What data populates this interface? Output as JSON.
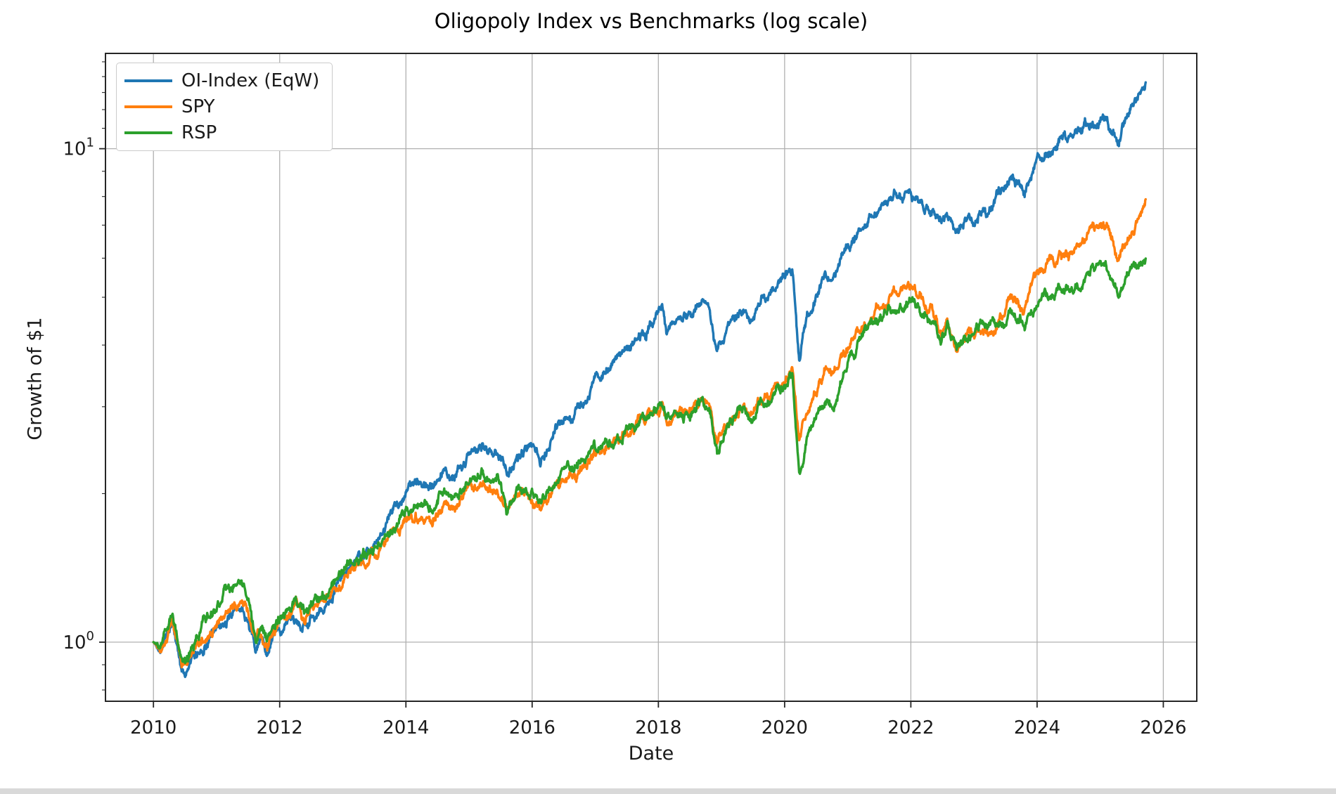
{
  "page": {
    "background": "#ffffff",
    "bottom_strip_color": "#d9d9d9"
  },
  "chart_data": {
    "type": "line",
    "title": "Oligopoly Index vs Benchmarks (log scale)",
    "xlabel": "Date",
    "ylabel": "Growth of $1",
    "log_y": true,
    "grid": true,
    "legend_position": "upper left",
    "x_range": [
      2009.24,
      2026.53
    ],
    "y_range": [
      0.759,
      15.6
    ],
    "x_tick_years": [
      2010,
      2012,
      2014,
      2016,
      2018,
      2020,
      2022,
      2024,
      2026
    ],
    "y_ticks": [
      {
        "value": 1,
        "base": "10",
        "exponent": "0"
      },
      {
        "value": 10,
        "base": "10",
        "exponent": "1"
      }
    ],
    "y_minor_tick_values": [
      0.8,
      0.9,
      2,
      3,
      4,
      5,
      6,
      7,
      8,
      9,
      11,
      12,
      13,
      14,
      15
    ],
    "axis_color": "#262626",
    "grid_color": "#b0b0b0",
    "series": [
      {
        "name": "OI-Index (EqW)",
        "color": "#1f77b4",
        "points": [
          [
            2010.0,
            1.0
          ],
          [
            2010.08,
            0.97
          ],
          [
            2010.3,
            1.09
          ],
          [
            2010.45,
            0.885
          ],
          [
            2010.52,
            0.87
          ],
          [
            2010.65,
            0.93
          ],
          [
            2010.8,
            0.99
          ],
          [
            2010.97,
            1.05
          ],
          [
            2011.1,
            1.1
          ],
          [
            2011.35,
            1.17
          ],
          [
            2011.5,
            1.12
          ],
          [
            2011.62,
            0.95
          ],
          [
            2011.7,
            1.0
          ],
          [
            2011.8,
            0.94
          ],
          [
            2011.95,
            1.03
          ],
          [
            2012.1,
            1.08
          ],
          [
            2012.25,
            1.13
          ],
          [
            2012.4,
            1.09
          ],
          [
            2012.6,
            1.15
          ],
          [
            2012.8,
            1.2
          ],
          [
            2013.0,
            1.36
          ],
          [
            2013.3,
            1.48
          ],
          [
            2013.5,
            1.58
          ],
          [
            2013.75,
            1.8
          ],
          [
            2014.0,
            2.05
          ],
          [
            2014.2,
            2.1
          ],
          [
            2014.4,
            2.06
          ],
          [
            2014.6,
            2.24
          ],
          [
            2014.78,
            2.18
          ],
          [
            2015.0,
            2.39
          ],
          [
            2015.2,
            2.45
          ],
          [
            2015.45,
            2.48
          ],
          [
            2015.6,
            2.21
          ],
          [
            2015.75,
            2.36
          ],
          [
            2015.9,
            2.5
          ],
          [
            2016.05,
            2.4
          ],
          [
            2016.13,
            2.35
          ],
          [
            2016.3,
            2.58
          ],
          [
            2016.5,
            2.8
          ],
          [
            2016.75,
            2.95
          ],
          [
            2017.0,
            3.46
          ],
          [
            2017.25,
            3.65
          ],
          [
            2017.5,
            3.93
          ],
          [
            2017.75,
            4.22
          ],
          [
            2018.0,
            4.6
          ],
          [
            2018.06,
            4.78
          ],
          [
            2018.13,
            4.28
          ],
          [
            2018.3,
            4.45
          ],
          [
            2018.5,
            4.52
          ],
          [
            2018.7,
            4.9
          ],
          [
            2018.82,
            4.65
          ],
          [
            2018.93,
            3.85
          ],
          [
            2019.1,
            4.45
          ],
          [
            2019.33,
            4.73
          ],
          [
            2019.45,
            4.43
          ],
          [
            2019.6,
            4.95
          ],
          [
            2019.78,
            5.05
          ],
          [
            2019.95,
            5.45
          ],
          [
            2020.12,
            5.8
          ],
          [
            2020.23,
            3.73
          ],
          [
            2020.35,
            4.55
          ],
          [
            2020.5,
            5.1
          ],
          [
            2020.65,
            5.5
          ],
          [
            2020.78,
            5.45
          ],
          [
            2020.9,
            5.95
          ],
          [
            2021.0,
            6.4
          ],
          [
            2021.2,
            6.8
          ],
          [
            2021.4,
            7.4
          ],
          [
            2021.6,
            7.8
          ],
          [
            2021.8,
            8.05
          ],
          [
            2021.95,
            8.15
          ],
          [
            2022.05,
            7.9
          ],
          [
            2022.2,
            7.55
          ],
          [
            2022.35,
            7.35
          ],
          [
            2022.48,
            7.0
          ],
          [
            2022.58,
            7.35
          ],
          [
            2022.73,
            6.7
          ],
          [
            2022.9,
            7.15
          ],
          [
            2023.0,
            7.05
          ],
          [
            2023.12,
            7.5
          ],
          [
            2023.22,
            7.3
          ],
          [
            2023.4,
            8.0
          ],
          [
            2023.58,
            8.8
          ],
          [
            2023.8,
            8.3
          ],
          [
            2024.0,
            9.5
          ],
          [
            2024.2,
            9.9
          ],
          [
            2024.4,
            10.4
          ],
          [
            2024.55,
            10.25
          ],
          [
            2024.75,
            11.0
          ],
          [
            2024.95,
            11.4
          ],
          [
            2025.08,
            11.6
          ],
          [
            2025.18,
            10.9
          ],
          [
            2025.3,
            10.3
          ],
          [
            2025.45,
            11.5
          ],
          [
            2025.55,
            12.3
          ],
          [
            2025.72,
            13.6
          ]
        ]
      },
      {
        "name": "SPY",
        "color": "#ff7f0e",
        "points": [
          [
            2010.0,
            1.0
          ],
          [
            2010.08,
            0.975
          ],
          [
            2010.3,
            1.1
          ],
          [
            2010.45,
            0.9
          ],
          [
            2010.52,
            0.89
          ],
          [
            2010.65,
            0.95
          ],
          [
            2010.8,
            1.02
          ],
          [
            2010.97,
            1.09
          ],
          [
            2011.1,
            1.13
          ],
          [
            2011.35,
            1.2
          ],
          [
            2011.5,
            1.15
          ],
          [
            2011.62,
            0.99
          ],
          [
            2011.7,
            1.04
          ],
          [
            2011.8,
            0.98
          ],
          [
            2011.95,
            1.07
          ],
          [
            2012.1,
            1.11
          ],
          [
            2012.25,
            1.17
          ],
          [
            2012.4,
            1.13
          ],
          [
            2012.6,
            1.19
          ],
          [
            2012.8,
            1.23
          ],
          [
            2013.0,
            1.38
          ],
          [
            2013.3,
            1.46
          ],
          [
            2013.5,
            1.5
          ],
          [
            2013.75,
            1.63
          ],
          [
            2014.0,
            1.78
          ],
          [
            2014.2,
            1.83
          ],
          [
            2014.4,
            1.8
          ],
          [
            2014.6,
            1.92
          ],
          [
            2014.78,
            1.89
          ],
          [
            2015.0,
            2.03
          ],
          [
            2015.2,
            2.06
          ],
          [
            2015.45,
            2.07
          ],
          [
            2015.6,
            1.85
          ],
          [
            2015.75,
            1.98
          ],
          [
            2015.9,
            1.99
          ],
          [
            2016.05,
            1.92
          ],
          [
            2016.13,
            1.88
          ],
          [
            2016.3,
            2.02
          ],
          [
            2016.5,
            2.12
          ],
          [
            2016.75,
            2.2
          ],
          [
            2017.0,
            2.38
          ],
          [
            2017.25,
            2.5
          ],
          [
            2017.5,
            2.71
          ],
          [
            2017.75,
            2.85
          ],
          [
            2018.0,
            3.0
          ],
          [
            2018.06,
            3.08
          ],
          [
            2018.13,
            2.82
          ],
          [
            2018.3,
            2.9
          ],
          [
            2018.5,
            2.97
          ],
          [
            2018.7,
            3.1
          ],
          [
            2018.82,
            3.0
          ],
          [
            2018.93,
            2.52
          ],
          [
            2019.1,
            2.8
          ],
          [
            2019.33,
            3.0
          ],
          [
            2019.45,
            2.86
          ],
          [
            2019.6,
            3.1
          ],
          [
            2019.78,
            3.17
          ],
          [
            2019.95,
            3.4
          ],
          [
            2020.12,
            3.62
          ],
          [
            2020.23,
            2.52
          ],
          [
            2020.35,
            2.95
          ],
          [
            2020.5,
            3.2
          ],
          [
            2020.65,
            3.55
          ],
          [
            2020.78,
            3.5
          ],
          [
            2020.9,
            3.75
          ],
          [
            2021.0,
            4.0
          ],
          [
            2021.2,
            4.25
          ],
          [
            2021.4,
            4.55
          ],
          [
            2021.6,
            4.9
          ],
          [
            2021.8,
            5.05
          ],
          [
            2021.95,
            5.3
          ],
          [
            2022.05,
            5.2
          ],
          [
            2022.2,
            4.9
          ],
          [
            2022.35,
            4.75
          ],
          [
            2022.48,
            4.2
          ],
          [
            2022.58,
            4.5
          ],
          [
            2022.73,
            3.93
          ],
          [
            2022.9,
            4.25
          ],
          [
            2023.0,
            4.15
          ],
          [
            2023.12,
            4.35
          ],
          [
            2023.22,
            4.25
          ],
          [
            2023.4,
            4.55
          ],
          [
            2023.58,
            5.0
          ],
          [
            2023.8,
            4.7
          ],
          [
            2024.0,
            5.6
          ],
          [
            2024.2,
            5.9
          ],
          [
            2024.4,
            6.1
          ],
          [
            2024.55,
            6.0
          ],
          [
            2024.75,
            6.5
          ],
          [
            2024.95,
            6.9
          ],
          [
            2025.08,
            7.05
          ],
          [
            2025.18,
            6.6
          ],
          [
            2025.3,
            5.95
          ],
          [
            2025.45,
            6.6
          ],
          [
            2025.55,
            7.0
          ],
          [
            2025.72,
            7.8
          ]
        ]
      },
      {
        "name": "RSP",
        "color": "#2ca02c",
        "points": [
          [
            2010.0,
            1.0
          ],
          [
            2010.08,
            0.98
          ],
          [
            2010.3,
            1.13
          ],
          [
            2010.45,
            0.93
          ],
          [
            2010.52,
            0.92
          ],
          [
            2010.65,
            0.99
          ],
          [
            2010.8,
            1.09
          ],
          [
            2010.97,
            1.19
          ],
          [
            2011.1,
            1.24
          ],
          [
            2011.35,
            1.32
          ],
          [
            2011.5,
            1.26
          ],
          [
            2011.62,
            1.03
          ],
          [
            2011.7,
            1.08
          ],
          [
            2011.8,
            1.01
          ],
          [
            2011.95,
            1.09
          ],
          [
            2012.1,
            1.13
          ],
          [
            2012.25,
            1.2
          ],
          [
            2012.4,
            1.16
          ],
          [
            2012.6,
            1.22
          ],
          [
            2012.8,
            1.26
          ],
          [
            2013.0,
            1.4
          ],
          [
            2013.3,
            1.49
          ],
          [
            2013.5,
            1.55
          ],
          [
            2013.75,
            1.7
          ],
          [
            2014.0,
            1.87
          ],
          [
            2014.2,
            1.93
          ],
          [
            2014.4,
            1.9
          ],
          [
            2014.6,
            2.0
          ],
          [
            2014.78,
            1.97
          ],
          [
            2015.0,
            2.12
          ],
          [
            2015.2,
            2.16
          ],
          [
            2015.45,
            2.18
          ],
          [
            2015.6,
            1.89
          ],
          [
            2015.75,
            2.04
          ],
          [
            2015.9,
            2.04
          ],
          [
            2016.05,
            1.96
          ],
          [
            2016.13,
            1.91
          ],
          [
            2016.3,
            2.08
          ],
          [
            2016.5,
            2.19
          ],
          [
            2016.75,
            2.28
          ],
          [
            2017.0,
            2.43
          ],
          [
            2017.25,
            2.52
          ],
          [
            2017.5,
            2.69
          ],
          [
            2017.75,
            2.82
          ],
          [
            2018.0,
            2.96
          ],
          [
            2018.06,
            3.03
          ],
          [
            2018.13,
            2.8
          ],
          [
            2018.3,
            2.88
          ],
          [
            2018.5,
            2.93
          ],
          [
            2018.7,
            3.05
          ],
          [
            2018.82,
            2.95
          ],
          [
            2018.93,
            2.46
          ],
          [
            2019.1,
            2.78
          ],
          [
            2019.33,
            2.97
          ],
          [
            2019.45,
            2.83
          ],
          [
            2019.6,
            3.05
          ],
          [
            2019.78,
            3.1
          ],
          [
            2019.95,
            3.3
          ],
          [
            2020.12,
            3.47
          ],
          [
            2020.23,
            2.1
          ],
          [
            2020.35,
            2.6
          ],
          [
            2020.5,
            2.85
          ],
          [
            2020.65,
            3.1
          ],
          [
            2020.78,
            3.05
          ],
          [
            2020.9,
            3.4
          ],
          [
            2021.0,
            3.75
          ],
          [
            2021.2,
            4.15
          ],
          [
            2021.4,
            4.5
          ],
          [
            2021.6,
            4.6
          ],
          [
            2021.8,
            4.75
          ],
          [
            2021.95,
            4.95
          ],
          [
            2022.05,
            4.88
          ],
          [
            2022.2,
            4.65
          ],
          [
            2022.35,
            4.55
          ],
          [
            2022.48,
            4.1
          ],
          [
            2022.58,
            4.4
          ],
          [
            2022.73,
            3.9
          ],
          [
            2022.9,
            4.2
          ],
          [
            2023.0,
            4.2
          ],
          [
            2023.12,
            4.4
          ],
          [
            2023.22,
            4.3
          ],
          [
            2023.4,
            4.4
          ],
          [
            2023.58,
            4.65
          ],
          [
            2023.8,
            4.4
          ],
          [
            2024.0,
            5.0
          ],
          [
            2024.2,
            5.1
          ],
          [
            2024.4,
            5.2
          ],
          [
            2024.55,
            5.12
          ],
          [
            2024.75,
            5.5
          ],
          [
            2024.95,
            5.68
          ],
          [
            2025.08,
            5.72
          ],
          [
            2025.18,
            5.4
          ],
          [
            2025.3,
            4.93
          ],
          [
            2025.45,
            5.5
          ],
          [
            2025.55,
            5.8
          ],
          [
            2025.72,
            6.1
          ]
        ]
      }
    ]
  }
}
